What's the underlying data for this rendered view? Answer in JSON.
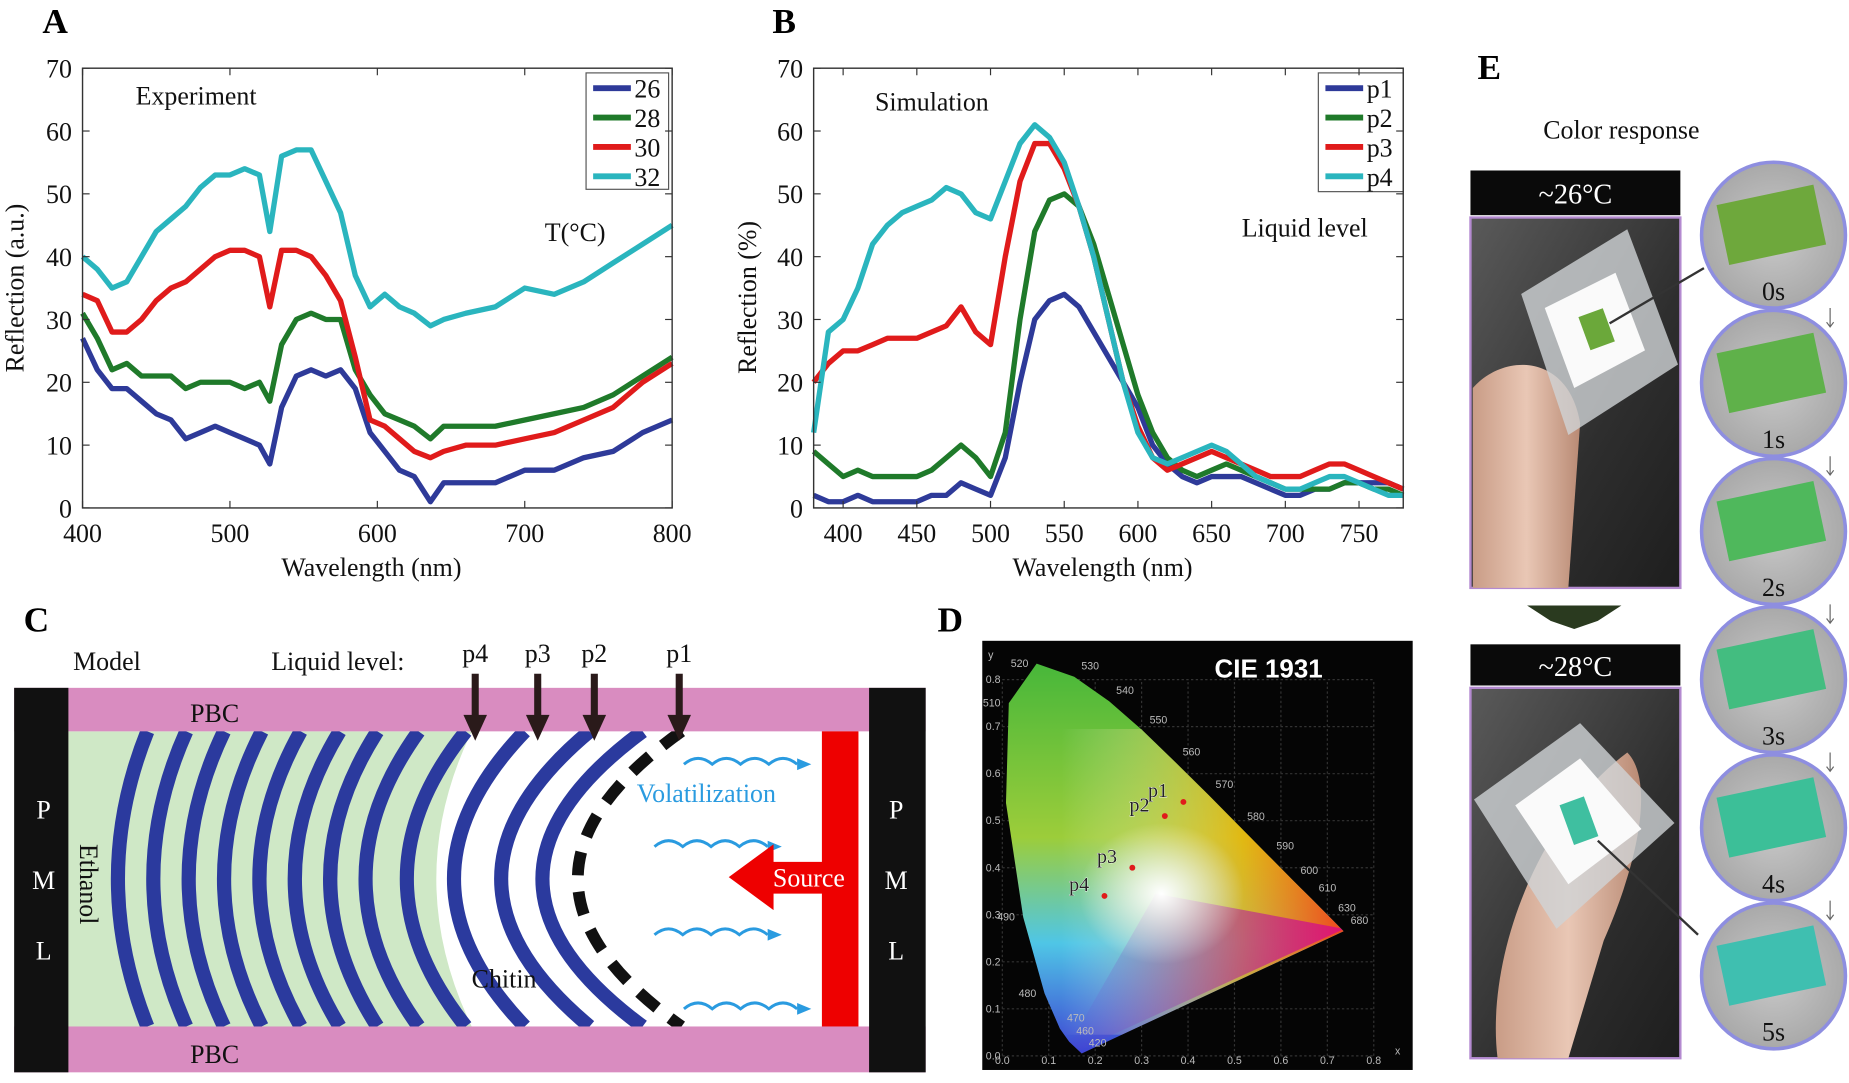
{
  "panels": {
    "A": {
      "label": "A"
    },
    "B": {
      "label": "B"
    },
    "C": {
      "label": "C"
    },
    "D": {
      "label": "D"
    },
    "E": {
      "label": "E"
    }
  },
  "chart_data": [
    {
      "id": "A",
      "type": "line",
      "annotation": "Experiment",
      "legend_title": "T(°C)",
      "legend_position": "top-right",
      "xlabel": "Wavelength (nm)",
      "ylabel": "Reflection (a.u.)",
      "xlim": [
        400,
        800
      ],
      "ylim": [
        0,
        70
      ],
      "xticks": [
        "400",
        "500",
        "600",
        "700",
        "800"
      ],
      "yticks": [
        "0",
        "10",
        "20",
        "30",
        "40",
        "50",
        "60",
        "70"
      ],
      "grid": false,
      "x": [
        400,
        410,
        420,
        430,
        440,
        450,
        460,
        470,
        480,
        490,
        500,
        510,
        520,
        527,
        535,
        545,
        555,
        565,
        575,
        585,
        595,
        605,
        615,
        625,
        636,
        645,
        660,
        680,
        700,
        720,
        740,
        760,
        780,
        800
      ],
      "series": [
        {
          "name": "26",
          "color": "#2e3a99",
          "values": [
            27,
            22,
            19,
            19,
            17,
            15,
            14,
            11,
            12,
            13,
            12,
            11,
            10,
            7,
            16,
            21,
            22,
            21,
            22,
            19,
            12,
            9,
            6,
            5,
            1,
            4,
            4,
            4,
            6,
            6,
            8,
            9,
            12,
            14
          ]
        },
        {
          "name": "28",
          "color": "#1f7a2a",
          "values": [
            31,
            27,
            22,
            23,
            21,
            21,
            21,
            19,
            20,
            20,
            20,
            19,
            20,
            17,
            26,
            30,
            31,
            30,
            30,
            22,
            18,
            15,
            14,
            13,
            11,
            13,
            13,
            13,
            14,
            15,
            16,
            18,
            21,
            24
          ]
        },
        {
          "name": "30",
          "color": "#e01b1b",
          "values": [
            34,
            33,
            28,
            28,
            30,
            33,
            35,
            36,
            38,
            40,
            41,
            41,
            40,
            32,
            41,
            41,
            40,
            37,
            33,
            24,
            14,
            13,
            11,
            9,
            8,
            9,
            10,
            10,
            11,
            12,
            14,
            16,
            20,
            23
          ]
        },
        {
          "name": "32",
          "color": "#2ab5be",
          "values": [
            40,
            38,
            35,
            36,
            40,
            44,
            46,
            48,
            51,
            53,
            53,
            54,
            53,
            44,
            56,
            57,
            57,
            52,
            47,
            37,
            32,
            34,
            32,
            31,
            29,
            30,
            31,
            32,
            35,
            34,
            36,
            39,
            42,
            45
          ]
        }
      ]
    },
    {
      "id": "B",
      "type": "line",
      "annotation": "Simulation",
      "legend_title": "Liquid level",
      "legend_position": "top-right",
      "xlabel": "Wavelength (nm)",
      "ylabel": "Reflection (%)",
      "xlim": [
        380,
        780
      ],
      "ylim": [
        0,
        70
      ],
      "xticks": [
        "400",
        "450",
        "500",
        "550",
        "600",
        "650",
        "700",
        "750"
      ],
      "yticks": [
        "0",
        "10",
        "20",
        "30",
        "40",
        "50",
        "60",
        "70"
      ],
      "grid": false,
      "x": [
        380,
        390,
        400,
        410,
        420,
        430,
        440,
        450,
        460,
        470,
        480,
        490,
        500,
        510,
        520,
        530,
        540,
        550,
        560,
        570,
        580,
        590,
        600,
        610,
        620,
        630,
        640,
        650,
        660,
        670,
        680,
        690,
        700,
        710,
        720,
        730,
        740,
        750,
        760,
        770,
        780
      ],
      "series": [
        {
          "name": "p1",
          "color": "#2e3a99",
          "values": [
            2,
            1,
            1,
            2,
            1,
            1,
            1,
            1,
            2,
            2,
            4,
            3,
            2,
            8,
            20,
            30,
            33,
            34,
            32,
            28,
            24,
            20,
            16,
            10,
            7,
            5,
            4,
            5,
            5,
            5,
            4,
            3,
            2,
            2,
            3,
            3,
            4,
            4,
            4,
            4,
            3
          ]
        },
        {
          "name": "p2",
          "color": "#1f7a2a",
          "values": [
            9,
            7,
            5,
            6,
            5,
            5,
            5,
            5,
            6,
            8,
            10,
            8,
            5,
            12,
            30,
            44,
            49,
            50,
            48,
            42,
            34,
            26,
            18,
            12,
            8,
            6,
            5,
            6,
            7,
            6,
            5,
            4,
            3,
            3,
            3,
            3,
            4,
            4,
            3,
            3,
            2
          ]
        },
        {
          "name": "p3",
          "color": "#e01b1b",
          "values": [
            20,
            23,
            25,
            25,
            26,
            27,
            27,
            27,
            28,
            29,
            32,
            28,
            26,
            40,
            52,
            58,
            58,
            54,
            48,
            40,
            30,
            20,
            13,
            8,
            6,
            7,
            8,
            9,
            8,
            7,
            6,
            5,
            5,
            5,
            6,
            7,
            7,
            6,
            5,
            4,
            3
          ]
        },
        {
          "name": "p4",
          "color": "#2ab5be",
          "values": [
            12,
            28,
            30,
            35,
            42,
            45,
            47,
            48,
            49,
            51,
            50,
            47,
            46,
            52,
            58,
            61,
            59,
            55,
            48,
            40,
            30,
            20,
            12,
            8,
            7,
            8,
            9,
            10,
            9,
            7,
            5,
            4,
            3,
            3,
            4,
            5,
            5,
            4,
            3,
            2,
            2
          ]
        }
      ]
    },
    {
      "id": "D",
      "type": "scatter",
      "title": "CIE 1931",
      "xlabel": "x",
      "ylabel": "y",
      "xlim": [
        0,
        0.8
      ],
      "ylim": [
        0,
        0.8
      ],
      "xticks": [
        "0.0",
        "0.1",
        "0.2",
        "0.3",
        "0.4",
        "0.5",
        "0.6",
        "0.7",
        "0.8"
      ],
      "yticks": [
        "0.0",
        "0.1",
        "0.2",
        "0.3",
        "0.4",
        "0.5",
        "0.6",
        "0.7",
        "0.8"
      ],
      "grid": true,
      "locus_labels": [
        {
          "nm": "420",
          "x": 0.171,
          "y": 0.005
        },
        {
          "nm": "460",
          "x": 0.144,
          "y": 0.03
        },
        {
          "nm": "470",
          "x": 0.124,
          "y": 0.058
        },
        {
          "nm": "480",
          "x": 0.091,
          "y": 0.133
        },
        {
          "nm": "490",
          "x": 0.045,
          "y": 0.295
        },
        {
          "nm": "510",
          "x": 0.014,
          "y": 0.75
        },
        {
          "nm": "520",
          "x": 0.074,
          "y": 0.834
        },
        {
          "nm": "530",
          "x": 0.155,
          "y": 0.806
        },
        {
          "nm": "540",
          "x": 0.23,
          "y": 0.754
        },
        {
          "nm": "550",
          "x": 0.302,
          "y": 0.692
        },
        {
          "nm": "560",
          "x": 0.373,
          "y": 0.624
        },
        {
          "nm": "570",
          "x": 0.444,
          "y": 0.555
        },
        {
          "nm": "580",
          "x": 0.512,
          "y": 0.487
        },
        {
          "nm": "590",
          "x": 0.575,
          "y": 0.424
        },
        {
          "nm": "600",
          "x": 0.627,
          "y": 0.372
        },
        {
          "nm": "610",
          "x": 0.666,
          "y": 0.334
        },
        {
          "nm": "630",
          "x": 0.708,
          "y": 0.292
        },
        {
          "nm": "680",
          "x": 0.735,
          "y": 0.265
        }
      ],
      "points": [
        {
          "name": "p1",
          "x": 0.39,
          "y": 0.54
        },
        {
          "name": "p2",
          "x": 0.35,
          "y": 0.51
        },
        {
          "name": "p3",
          "x": 0.28,
          "y": 0.4
        },
        {
          "name": "p4",
          "x": 0.22,
          "y": 0.34
        }
      ],
      "point_color": "#e01b1b"
    }
  ],
  "model": {
    "model_label": "Model",
    "liquid_level_label": "Liquid level:",
    "levels": [
      "p4",
      "p3",
      "p2",
      "p1"
    ],
    "pbc_top": "PBC",
    "pbc_bottom": "PBC",
    "pml_left": [
      "P",
      "M",
      "L"
    ],
    "pml_right": [
      "P",
      "M",
      "L"
    ],
    "ethanol": "Ethanol",
    "chitin": "Chitin",
    "volatilization": "Volatilization",
    "source": "Source"
  },
  "color_response": {
    "title": "Color response",
    "temp1": "~26°C",
    "temp2": "~28°C",
    "frames": [
      "0s",
      "1s",
      "2s",
      "3s",
      "4s",
      "5s"
    ]
  }
}
